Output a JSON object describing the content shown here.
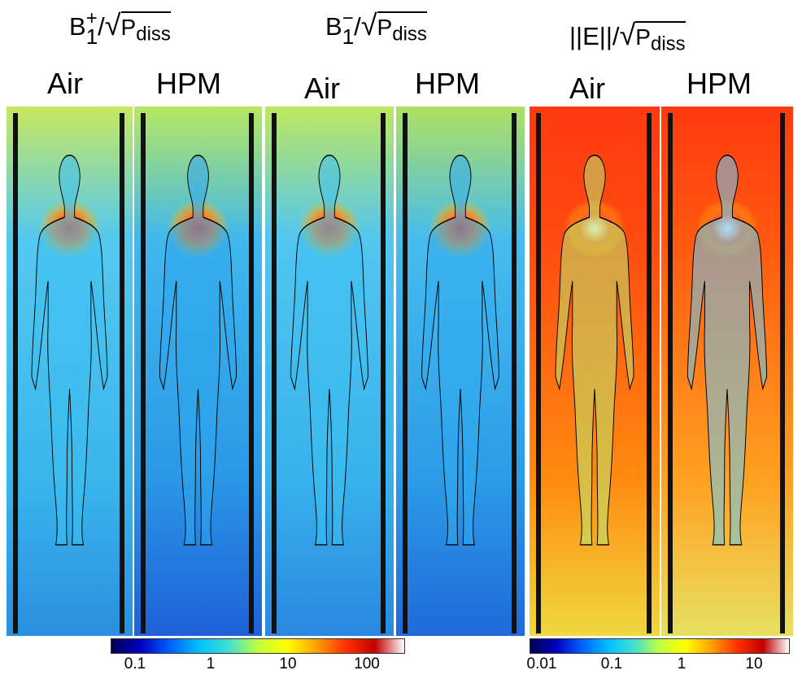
{
  "groups": [
    {
      "symbol": "B",
      "sub": "1",
      "sup": "+",
      "slash": "/",
      "denom_main": "P",
      "denom_sub": "diss"
    },
    {
      "symbol": "B",
      "sub": "1",
      "sup": "−",
      "slash": "/",
      "denom_main": "P",
      "denom_sub": "diss"
    },
    {
      "symbol": "||E||",
      "sub": "",
      "sup": "",
      "slash": "/",
      "denom_main": "P",
      "denom_sub": "diss"
    }
  ],
  "columns": [
    "Air",
    "HPM",
    "Air",
    "HPM",
    "Air",
    "HPM"
  ],
  "colorbars": [
    {
      "ticks": [
        "0.1",
        "1",
        "10",
        "100"
      ],
      "scale": "log"
    },
    {
      "ticks": [
        "0.01",
        "0.1",
        "1",
        "10"
      ],
      "scale": "log"
    }
  ],
  "colors": {
    "jet": [
      "#000050",
      "#0000c0",
      "#0060ff",
      "#00c0ff",
      "#40e0d0",
      "#c0ff40",
      "#ffff00",
      "#ffa000",
      "#ff3000",
      "#c00000",
      "#ffffff"
    ],
    "outline": "#000000"
  }
}
